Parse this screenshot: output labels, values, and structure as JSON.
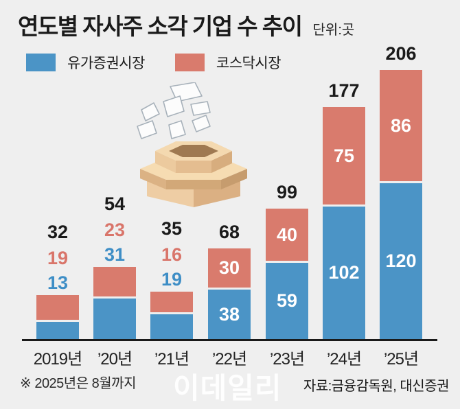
{
  "header": {
    "title": "연도별 자사주 소각 기업 수 추이",
    "unit": "단위:곳"
  },
  "legend": {
    "items": [
      {
        "label": "유가증권시장",
        "color": "#4b94c6"
      },
      {
        "label": "코스닥시장",
        "color": "#d97b6d"
      }
    ]
  },
  "chart_data": {
    "type": "bar",
    "stacked": true,
    "title": "연도별 자사주 소각 기업 수 추이",
    "unit_label": "단위:곳",
    "categories": [
      "2019년",
      "’20년",
      "’21년",
      "’22년",
      "’23년",
      "’24년",
      "’25년"
    ],
    "series": [
      {
        "name": "유가증권시장",
        "color": "#4b94c6",
        "label_color": "#3e8ec6",
        "values": [
          13,
          31,
          19,
          38,
          59,
          102,
          120
        ]
      },
      {
        "name": "코스닥시장",
        "color": "#d97b6d",
        "label_color": "#d9756a",
        "values": [
          19,
          23,
          16,
          30,
          40,
          75,
          86
        ]
      }
    ],
    "totals": [
      32,
      54,
      35,
      68,
      99,
      177,
      206
    ],
    "value_labels_inside_from_index": 3,
    "legend_position": "top-left",
    "grid": false,
    "ylim": [
      0,
      210
    ]
  },
  "footnote": "※ 2025년은 8월까지",
  "source": "자료:금융감독원, 대신증권",
  "watermark": "이데일리",
  "illustration": "papers-falling-into-box",
  "colors": {
    "background": "#efefef",
    "axis": "#1a1a1a",
    "total_label": "#1a1a1a",
    "tick_label": "#222222",
    "inside_label": "#ffffff"
  }
}
